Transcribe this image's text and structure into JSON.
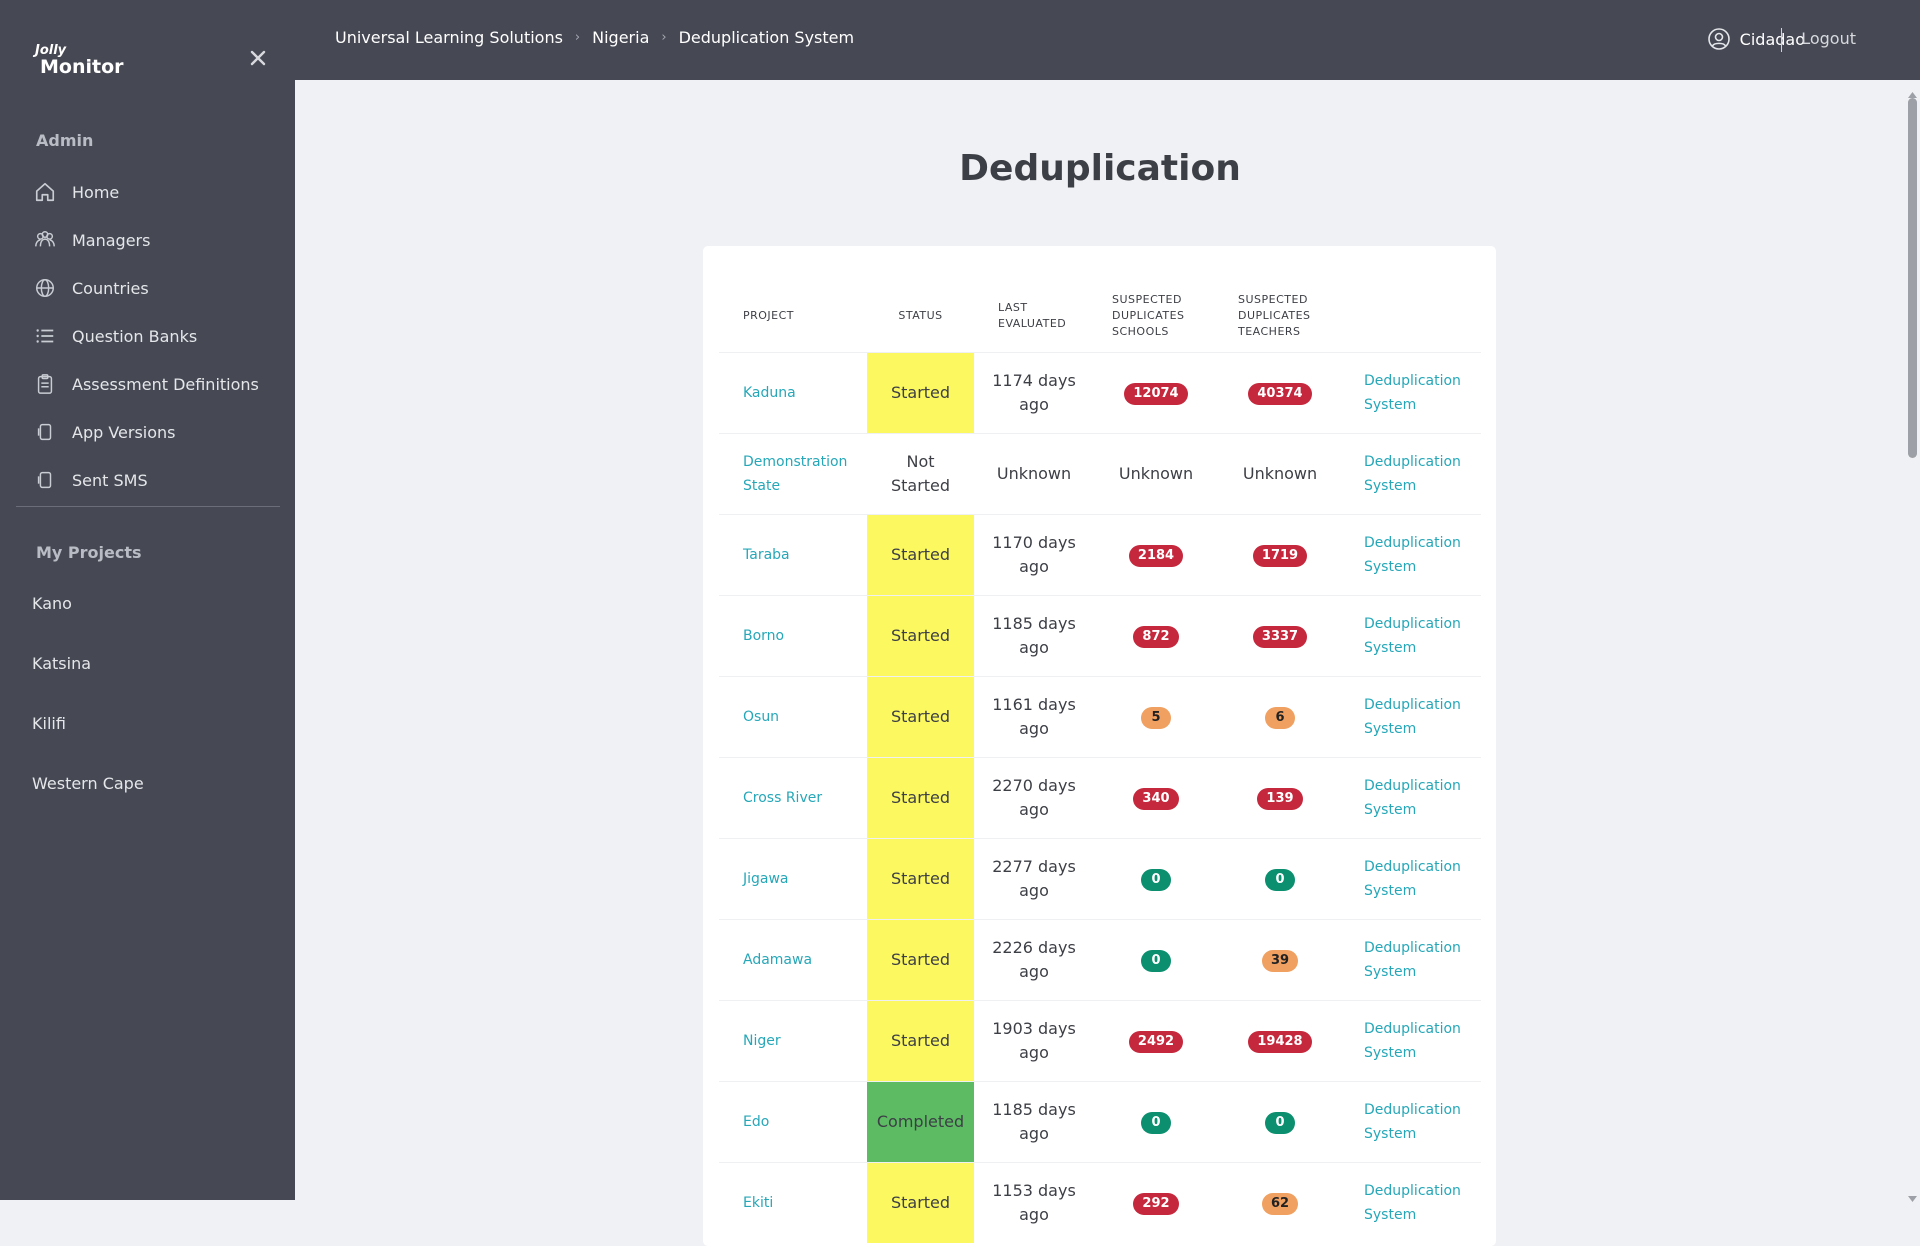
{
  "app": {
    "logo_top": "Jolly",
    "logo_bottom": "Monitor"
  },
  "sidebar": {
    "admin_label": "Admin",
    "items": [
      {
        "label": "Home",
        "icon": "home-icon"
      },
      {
        "label": "Managers",
        "icon": "users-icon"
      },
      {
        "label": "Countries",
        "icon": "globe-icon"
      },
      {
        "label": "Question Banks",
        "icon": "list-icon"
      },
      {
        "label": "Assessment Definitions",
        "icon": "clipboard-icon"
      },
      {
        "label": "App Versions",
        "icon": "device-icon"
      },
      {
        "label": "Sent SMS",
        "icon": "device-icon"
      }
    ],
    "projects_label": "My Projects",
    "projects": [
      "Kano",
      "Katsina",
      "Kilifi",
      "Western Cape"
    ]
  },
  "header": {
    "breadcrumbs": [
      "Universal Learning Solutions",
      "Nigeria",
      "Deduplication System"
    ],
    "user_name": "Cidadao",
    "logout_label": "Logout"
  },
  "main": {
    "title": "Deduplication",
    "columns": [
      "PROJECT",
      "STATUS",
      "LAST EVALUATED",
      "SUSPECTED DUPLICATES SCHOOLS",
      "SUSPECTED DUPLICATES TEACHERS"
    ],
    "rows": [
      {
        "project": "Kaduna",
        "status": "Started",
        "last": "1174 days ago",
        "schools": "12074",
        "teachers": "40374",
        "link": "Deduplication System"
      },
      {
        "project": "Demonstration State",
        "status": "Not Started",
        "last": "Unknown",
        "schools": "Unknown",
        "teachers": "Unknown",
        "link": "Deduplication System"
      },
      {
        "project": "Taraba",
        "status": "Started",
        "last": "1170 days ago",
        "schools": "2184",
        "teachers": "1719",
        "link": "Deduplication System"
      },
      {
        "project": "Borno",
        "status": "Started",
        "last": "1185 days ago",
        "schools": "872",
        "teachers": "3337",
        "link": "Deduplication System"
      },
      {
        "project": "Osun",
        "status": "Started",
        "last": "1161 days ago",
        "schools": "5",
        "teachers": "6",
        "link": "Deduplication System"
      },
      {
        "project": "Cross River",
        "status": "Started",
        "last": "2270 days ago",
        "schools": "340",
        "teachers": "139",
        "link": "Deduplication System"
      },
      {
        "project": "Jigawa",
        "status": "Started",
        "last": "2277 days ago",
        "schools": "0",
        "teachers": "0",
        "link": "Deduplication System"
      },
      {
        "project": "Adamawa",
        "status": "Started",
        "last": "2226 days ago",
        "schools": "0",
        "teachers": "39",
        "link": "Deduplication System"
      },
      {
        "project": "Niger",
        "status": "Started",
        "last": "1903 days ago",
        "schools": "2492",
        "teachers": "19428",
        "link": "Deduplication System"
      },
      {
        "project": "Edo",
        "status": "Completed",
        "last": "1185 days ago",
        "schools": "0",
        "teachers": "0",
        "link": "Deduplication System"
      },
      {
        "project": "Ekiti",
        "status": "Started",
        "last": "1153 days ago",
        "schools": "292",
        "teachers": "62",
        "link": "Deduplication System"
      }
    ]
  },
  "colors": {
    "sidebar_bg": "#464853",
    "link": "#26a7b8",
    "started": "#fbf860",
    "completed": "#5dbb63",
    "badge_red": "#c5283d",
    "badge_orange": "#f0a060",
    "badge_green": "#0b8f6e"
  }
}
